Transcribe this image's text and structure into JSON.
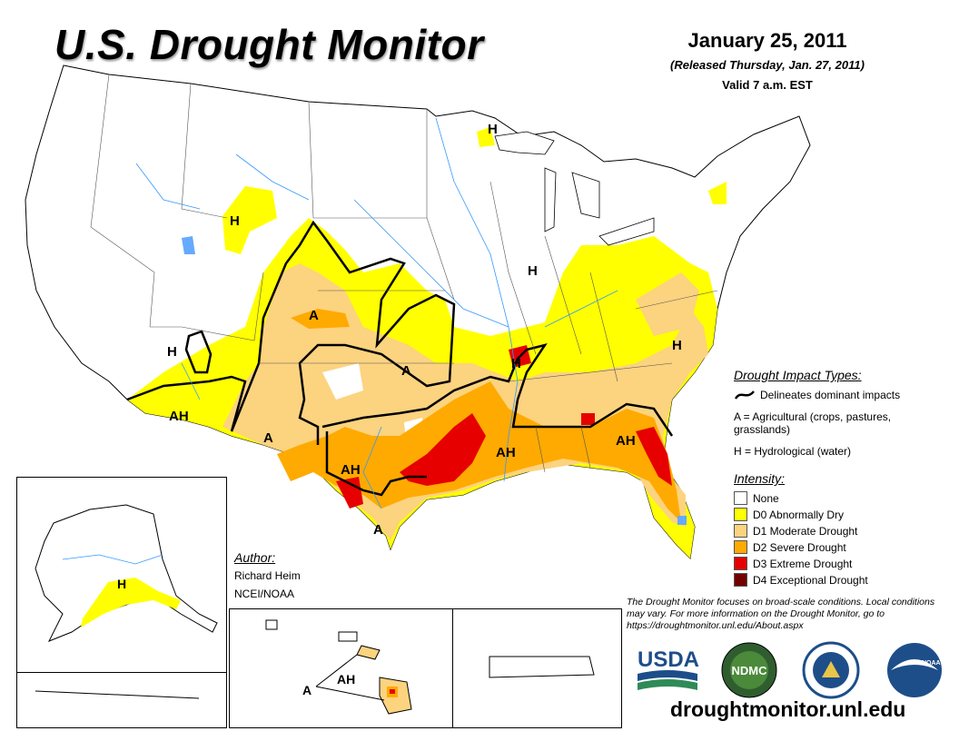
{
  "header": {
    "title": "U.S. Drought Monitor",
    "date": "January 25, 2011",
    "released": "(Released Thursday, Jan. 27, 2011)",
    "valid": "Valid 7 a.m. EST"
  },
  "impact_types": {
    "heading": "Drought Impact Types:",
    "delineates": "Delineates dominant impacts",
    "agricultural": "A = Agricultural (crops, pastures, grasslands)",
    "hydrological": "H = Hydrological (water)"
  },
  "intensity": {
    "heading": "Intensity:",
    "levels": [
      {
        "label": "None",
        "color": "#ffffff"
      },
      {
        "label": "D0 Abnormally Dry",
        "color": "#ffff00"
      },
      {
        "label": "D1 Moderate Drought",
        "color": "#fcd37f"
      },
      {
        "label": "D2 Severe Drought",
        "color": "#ffaa00"
      },
      {
        "label": "D3 Extreme Drought",
        "color": "#e60000"
      },
      {
        "label": "D4 Exceptional Drought",
        "color": "#730000"
      }
    ]
  },
  "author": {
    "heading": "Author:",
    "name": "Richard Heim",
    "org": "NCEI/NOAA"
  },
  "footnote": "The Drought Monitor focuses on broad-scale conditions. Local conditions may vary. For more information on the Drought Monitor, go to https://droughtmonitor.unl.edu/About.aspx",
  "url": "droughtmonitor.unl.edu",
  "logos": {
    "usda": "USDA",
    "ndmc": "NDMC",
    "noaa": "NOAA"
  },
  "map_labels": {
    "h": "H",
    "a": "A",
    "ah": "AH"
  },
  "colors": {
    "none": "#ffffff",
    "d0": "#ffff00",
    "d1": "#fcd37f",
    "d2": "#ffaa00",
    "d3": "#e60000",
    "d4": "#730000",
    "water": "#66aaff"
  }
}
